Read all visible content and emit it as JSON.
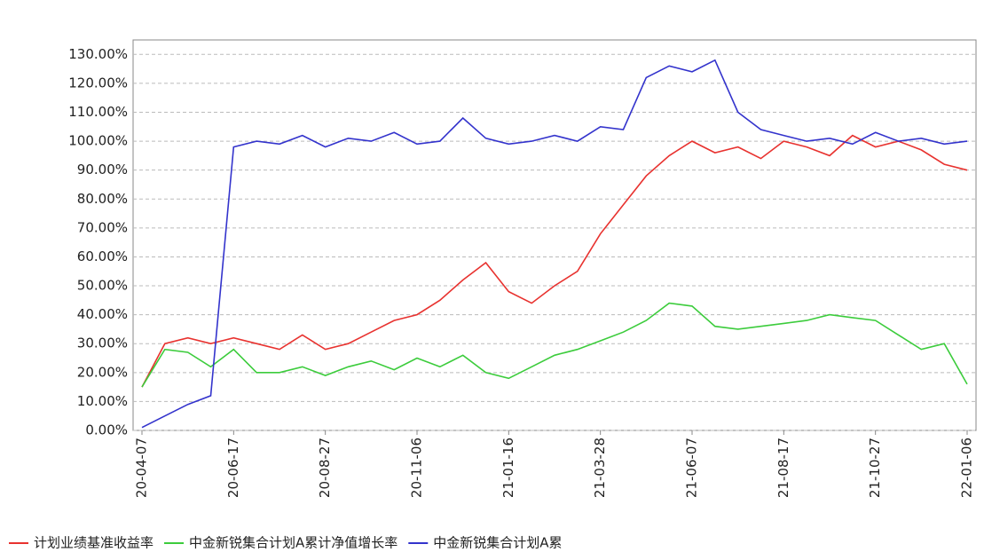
{
  "chart_data": {
    "type": "line",
    "categories": [
      "20-04-07",
      null,
      null,
      null,
      "20-06-17",
      null,
      null,
      null,
      "20-08-27",
      null,
      null,
      null,
      "20-11-06",
      null,
      null,
      null,
      "21-01-16",
      null,
      null,
      null,
      "21-03-28",
      null,
      null,
      null,
      "21-06-07",
      null,
      null,
      null,
      "21-08-17",
      null,
      null,
      null,
      "21-10-27",
      null,
      null,
      null,
      "22-01-06"
    ],
    "series": [
      {
        "name": "计划业绩基准收益率",
        "color": "#e8322f",
        "values": [
          15,
          30,
          32,
          30,
          32,
          30,
          28,
          33,
          28,
          30,
          34,
          38,
          40,
          45,
          52,
          58,
          48,
          44,
          50,
          55,
          68,
          78,
          88,
          95,
          100,
          96,
          98,
          94,
          100,
          98,
          95,
          102,
          98,
          100,
          97,
          92,
          90
        ]
      },
      {
        "name": "中金新锐集合计划A累计净值增长率",
        "color": "#3ccc3c",
        "values": [
          15,
          28,
          27,
          22,
          28,
          20,
          20,
          22,
          19,
          22,
          24,
          21,
          25,
          22,
          26,
          20,
          18,
          22,
          26,
          28,
          31,
          34,
          38,
          44,
          43,
          36,
          35,
          36,
          37,
          38,
          40,
          39,
          38,
          33,
          28,
          30,
          16
        ]
      },
      {
        "name": "中金新锐集合计划A累",
        "color": "#3333cc",
        "values": [
          1,
          5,
          9,
          12,
          98,
          100,
          99,
          102,
          98,
          101,
          100,
          103,
          99,
          100,
          108,
          101,
          99,
          100,
          102,
          100,
          105,
          104,
          122,
          126,
          124,
          128,
          110,
          104,
          102,
          100,
          101,
          99,
          103,
          100,
          101,
          99,
          100
        ]
      }
    ],
    "ylim": [
      0,
      135
    ],
    "yticks": [
      {
        "value": 0,
        "label": "0.00%"
      },
      {
        "value": 10,
        "label": "10.00%"
      },
      {
        "value": 20,
        "label": "20.00%"
      },
      {
        "value": 30,
        "label": "30.00%"
      },
      {
        "value": 40,
        "label": "40.00%"
      },
      {
        "value": 50,
        "label": "50.00%"
      },
      {
        "value": 60,
        "label": "60.00%"
      },
      {
        "value": 70,
        "label": "70.00%"
      },
      {
        "value": 80,
        "label": "80.00%"
      },
      {
        "value": 90,
        "label": "90.00%"
      },
      {
        "value": 100,
        "label": "100.00%"
      },
      {
        "value": 110,
        "label": "110.00%"
      },
      {
        "value": 120,
        "label": "120.00%"
      },
      {
        "value": 130,
        "label": "130.00%"
      }
    ],
    "grid": true
  }
}
